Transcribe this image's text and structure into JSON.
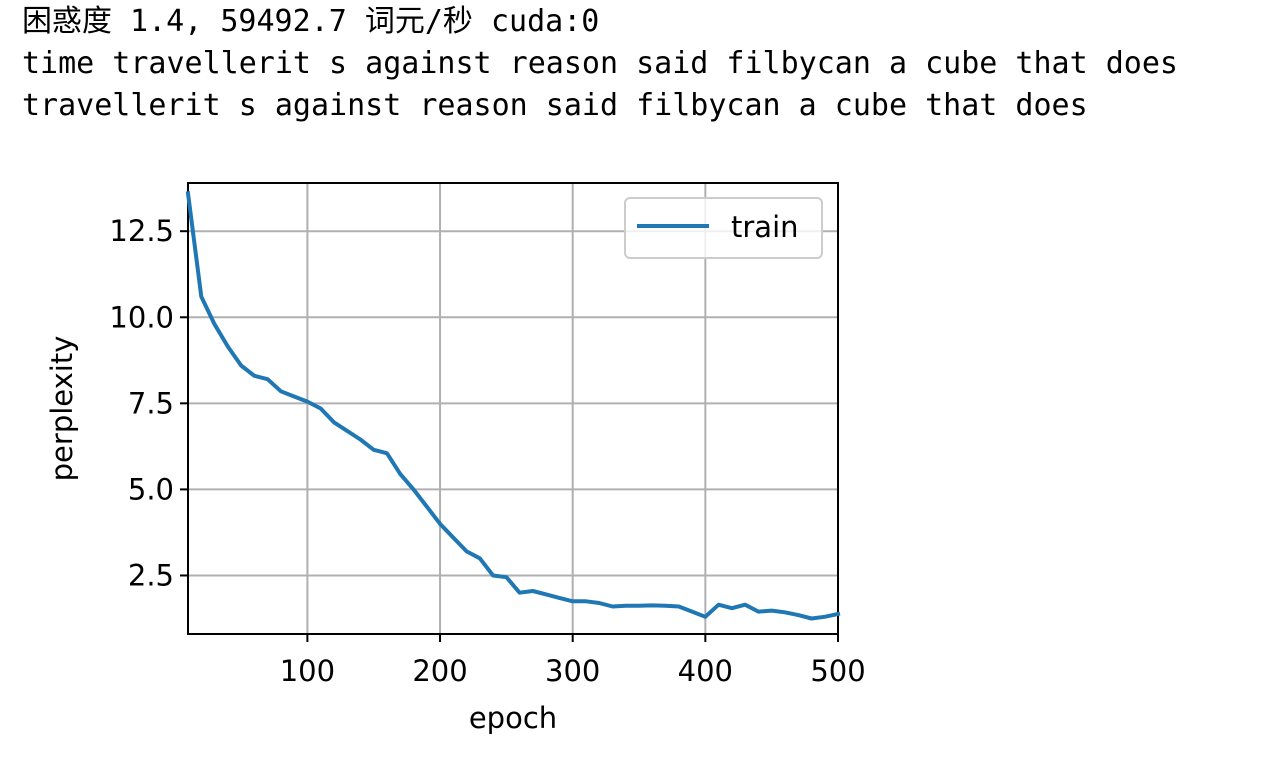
{
  "output": {
    "lines": [
      "困惑度 1.4, 59492.7 词元/秒 cuda:0",
      "time travellerit s against reason said filbycan a cube that does",
      "travellerit s against reason said filbycan a cube that does"
    ]
  },
  "chart_data": {
    "type": "line",
    "xlabel": "epoch",
    "ylabel": "perplexity",
    "xlim": [
      10,
      500
    ],
    "ylim": [
      0.8,
      13.9
    ],
    "xticks": [
      100,
      200,
      300,
      400,
      500
    ],
    "xtick_labels": [
      "100",
      "200",
      "300",
      "400",
      "500"
    ],
    "yticks": [
      2.5,
      5.0,
      7.5,
      10.0,
      12.5
    ],
    "ytick_labels": [
      "2.5",
      "5.0",
      "7.5",
      "10.0",
      "12.5"
    ],
    "grid": true,
    "legend_position": "top-right",
    "series": [
      {
        "name": "train",
        "color": "#1f77b4",
        "x": [
          10,
          20,
          30,
          40,
          50,
          60,
          70,
          80,
          90,
          100,
          110,
          120,
          130,
          140,
          150,
          160,
          170,
          180,
          190,
          200,
          210,
          220,
          230,
          240,
          250,
          260,
          270,
          280,
          290,
          300,
          310,
          320,
          330,
          340,
          350,
          360,
          370,
          380,
          390,
          400,
          410,
          420,
          430,
          440,
          450,
          460,
          470,
          480,
          490,
          500
        ],
        "y": [
          13.6,
          10.6,
          9.8,
          9.15,
          8.6,
          8.3,
          8.2,
          7.85,
          7.7,
          7.55,
          7.35,
          6.95,
          6.7,
          6.45,
          6.15,
          6.05,
          5.45,
          5.0,
          4.5,
          4.0,
          3.6,
          3.2,
          3.0,
          2.5,
          2.45,
          2.0,
          2.05,
          1.95,
          1.85,
          1.75,
          1.75,
          1.7,
          1.6,
          1.62,
          1.62,
          1.63,
          1.62,
          1.6,
          1.45,
          1.3,
          1.65,
          1.55,
          1.65,
          1.45,
          1.48,
          1.43,
          1.35,
          1.25,
          1.3,
          1.38
        ]
      }
    ]
  }
}
